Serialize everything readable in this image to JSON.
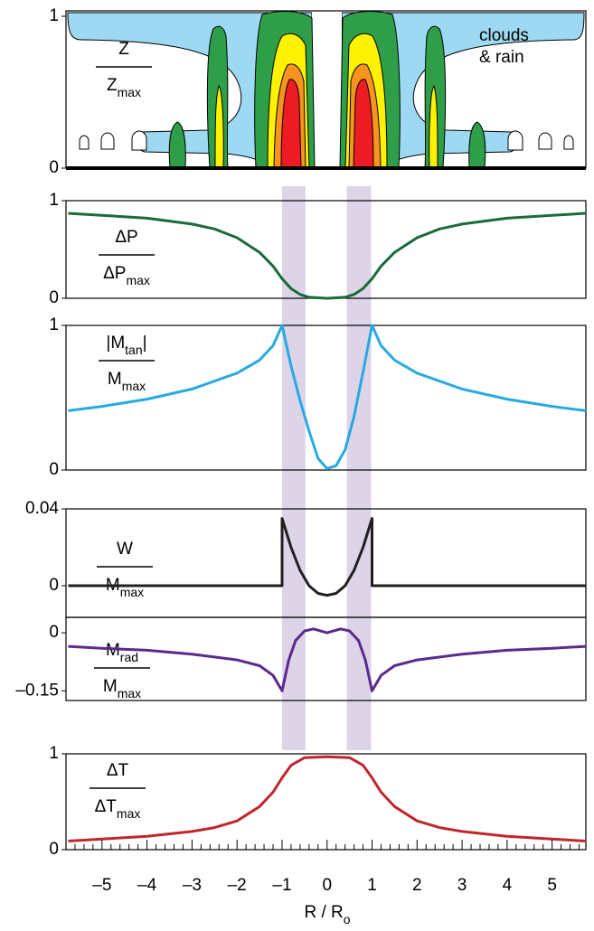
{
  "chart_data": [
    {
      "type": "diagram",
      "ylim": [
        0,
        1
      ],
      "yticks": [
        0,
        1
      ],
      "ylabel": {
        "numerator": [
          {
            "text": "Z"
          }
        ],
        "denominator": [
          {
            "text": "Z"
          },
          {
            "sub": "max"
          }
        ]
      },
      "annotation": [
        "clouds",
        "& rain"
      ]
    },
    {
      "type": "line",
      "ylim": [
        0,
        1
      ],
      "yticks": [
        0,
        1
      ],
      "color": "#1a6b3a",
      "ylabel": {
        "numerator": [
          {
            "text": "ΔP"
          }
        ],
        "denominator": [
          {
            "text": "ΔP"
          },
          {
            "sub": "max"
          }
        ]
      },
      "x": [
        -5.75,
        -5,
        -4,
        -3,
        -2.5,
        -2,
        -1.5,
        -1.2,
        -1,
        -0.8,
        -0.6,
        -0.4,
        0,
        0.4,
        0.6,
        0.8,
        1,
        1.2,
        1.5,
        2,
        2.5,
        3,
        4,
        5,
        5.75
      ],
      "values": [
        0.87,
        0.85,
        0.82,
        0.76,
        0.71,
        0.62,
        0.47,
        0.33,
        0.2,
        0.1,
        0.04,
        0.01,
        0,
        0.01,
        0.04,
        0.1,
        0.2,
        0.33,
        0.47,
        0.62,
        0.71,
        0.76,
        0.82,
        0.85,
        0.87
      ]
    },
    {
      "type": "line",
      "ylim": [
        0,
        1
      ],
      "yticks": [
        0,
        1
      ],
      "color": "#27aae1",
      "ylabel": {
        "numerator": [
          {
            "text": "|M"
          },
          {
            "sub": "tan"
          },
          {
            "text": "|"
          }
        ],
        "denominator": [
          {
            "text": "M"
          },
          {
            "sub": "max"
          }
        ]
      },
      "x": [
        -5.75,
        -5,
        -4,
        -3,
        -2,
        -1.5,
        -1.2,
        -1,
        -0.8,
        -0.6,
        -0.4,
        -0.2,
        0,
        0.2,
        0.4,
        0.6,
        0.8,
        1,
        1.2,
        1.5,
        2,
        3,
        4,
        5,
        5.75
      ],
      "values": [
        0.41,
        0.44,
        0.49,
        0.56,
        0.67,
        0.76,
        0.86,
        1,
        0.72,
        0.48,
        0.27,
        0.08,
        0.01,
        0.03,
        0.14,
        0.37,
        0.68,
        1,
        0.86,
        0.76,
        0.67,
        0.56,
        0.49,
        0.44,
        0.41
      ]
    },
    {
      "type": "line",
      "ylim": [
        -0.0165,
        0.04
      ],
      "yticks": [
        0,
        0.04
      ],
      "color": "#231f20",
      "ylabel": {
        "numerator": [
          {
            "text": "W"
          }
        ],
        "denominator": [
          {
            "text": "M"
          },
          {
            "sub": "max"
          }
        ]
      },
      "x": [
        -5.75,
        -1,
        -1,
        -0.8,
        -0.6,
        -0.4,
        -0.2,
        0,
        0.2,
        0.4,
        0.6,
        0.8,
        1,
        1,
        5.75
      ],
      "values": [
        0,
        0,
        0.035,
        0.02,
        0.008,
        0,
        -0.004,
        -0.005,
        -0.004,
        0,
        0.008,
        0.02,
        0.035,
        0,
        0
      ]
    },
    {
      "type": "line",
      "ylim": [
        -0.175,
        0.04
      ],
      "yticks": [
        {
          "value": -0.15,
          "label": "–0.15"
        },
        0
      ],
      "color": "#5b2a8c",
      "ylabel": {
        "numerator": [
          {
            "text": "M"
          },
          {
            "sub": "rad"
          }
        ],
        "denominator": [
          {
            "text": "M"
          },
          {
            "sub": "max"
          }
        ]
      },
      "x": [
        -5.75,
        -5,
        -4,
        -3,
        -2,
        -1.5,
        -1.2,
        -1,
        -0.85,
        -0.7,
        -0.5,
        -0.3,
        0,
        0.3,
        0.5,
        0.7,
        0.85,
        1,
        1.2,
        1.5,
        2,
        3,
        4,
        5,
        5.75
      ],
      "values": [
        -0.035,
        -0.04,
        -0.045,
        -0.055,
        -0.07,
        -0.085,
        -0.11,
        -0.15,
        -0.07,
        -0.02,
        0.005,
        0.01,
        0,
        0.01,
        0.005,
        -0.02,
        -0.07,
        -0.15,
        -0.11,
        -0.085,
        -0.07,
        -0.055,
        -0.045,
        -0.04,
        -0.035
      ]
    },
    {
      "type": "line",
      "ylim": [
        0,
        1
      ],
      "yticks": [
        0,
        1
      ],
      "color": "#c0272d",
      "ylabel": {
        "numerator": [
          {
            "text": "ΔT"
          }
        ],
        "denominator": [
          {
            "text": "ΔT"
          },
          {
            "sub": "max"
          }
        ]
      },
      "x": [
        -5.75,
        -5,
        -4,
        -3,
        -2.5,
        -2,
        -1.5,
        -1.2,
        -1,
        -0.8,
        -0.5,
        0,
        0.5,
        0.8,
        1,
        1.2,
        1.5,
        2,
        2.5,
        3,
        4,
        5,
        5.75
      ],
      "values": [
        0.09,
        0.11,
        0.14,
        0.19,
        0.23,
        0.3,
        0.45,
        0.6,
        0.75,
        0.88,
        0.96,
        0.97,
        0.96,
        0.88,
        0.75,
        0.6,
        0.45,
        0.3,
        0.23,
        0.19,
        0.14,
        0.11,
        0.09
      ],
      "xlim": [
        -5.8,
        5.75
      ],
      "xticks": [
        {
          "value": -5,
          "label": "–5"
        },
        {
          "value": -4,
          "label": "–4"
        },
        {
          "value": -3,
          "label": "–3"
        },
        {
          "value": -2,
          "label": "–2"
        },
        {
          "value": -1,
          "label": "–1"
        },
        0,
        1,
        2,
        3,
        4,
        5
      ],
      "minor_xticks": [
        -5.6,
        -5.4,
        -5.2,
        -4.8,
        -4.6,
        -4.4,
        -4.2,
        -3.8,
        -3.6,
        -3.4,
        -3.2,
        -2.8,
        -2.6,
        -2.4,
        -2.2,
        -1.8,
        -1.6,
        -1.4,
        -1.2,
        -0.8,
        -0.6,
        -0.4,
        -0.2,
        0.2,
        0.4,
        0.6,
        0.8,
        1.2,
        1.4,
        1.6,
        1.8,
        2.2,
        2.4,
        2.6,
        2.8,
        3.2,
        3.4,
        3.6,
        3.8,
        4.2,
        4.4,
        4.6,
        4.8,
        5.2,
        5.4,
        5.6
      ],
      "xlabel": [
        {
          "text": "R / R"
        },
        {
          "sub": "o"
        }
      ],
      "shaded_x": [
        [
          -1,
          -0.48
        ],
        [
          0.44,
          0.98
        ]
      ],
      "shade_color": "#d9cfe6"
    }
  ]
}
